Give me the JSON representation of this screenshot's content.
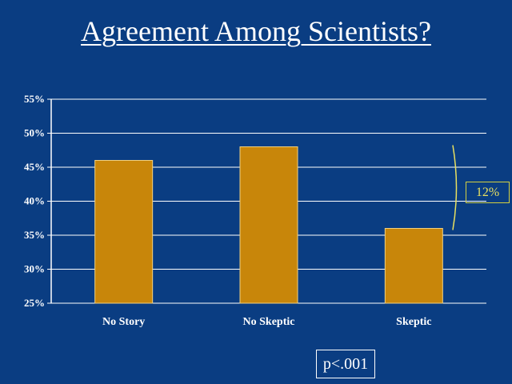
{
  "chart_data": {
    "type": "bar",
    "title": "Agreement Among Scientists?",
    "categories": [
      "No Story",
      "No Skeptic",
      "Skeptic"
    ],
    "values": [
      46,
      48,
      36
    ],
    "unit": "%",
    "ylim": [
      25,
      55
    ],
    "yticks": [
      25,
      30,
      35,
      40,
      45,
      50,
      55
    ],
    "ytick_labels": [
      "25%",
      "30%",
      "35%",
      "40%",
      "45%",
      "50%",
      "55%"
    ],
    "grid": true,
    "bar_color": "#c8860a",
    "annotations": {
      "difference": "12%",
      "p_value": "p<.001"
    }
  }
}
